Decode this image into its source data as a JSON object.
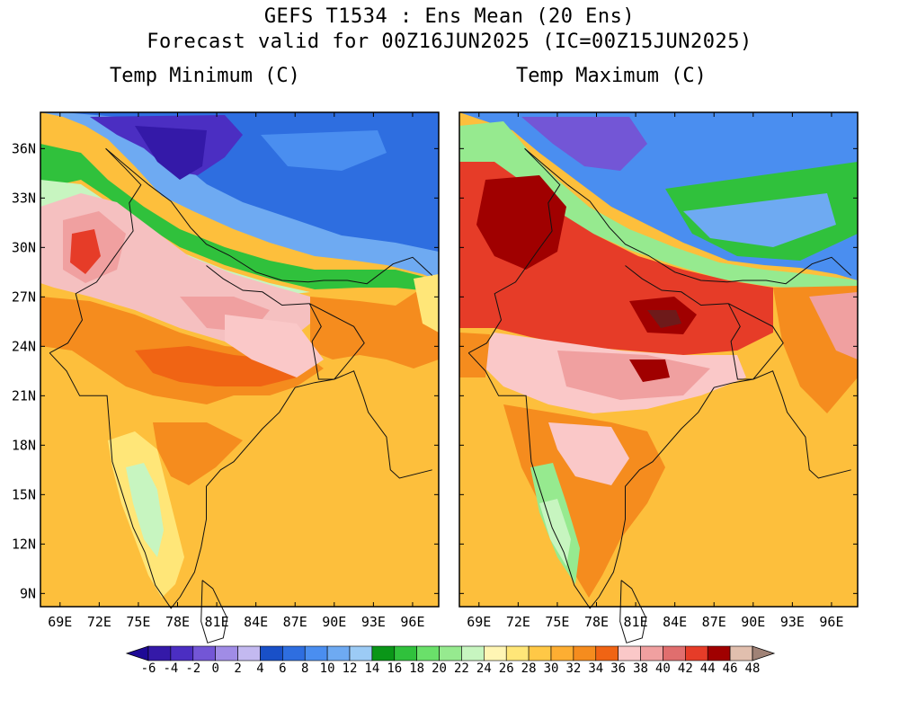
{
  "header": {
    "line1": "GEFS T1534 : Ens Mean (20 Ens)",
    "line2": "Forecast valid for 00Z16JUN2025 (IC=00Z15JUN2025)"
  },
  "panels": [
    {
      "title": "Temp Minimum (C)"
    },
    {
      "title": "Temp Maximum (C)"
    }
  ],
  "axes": {
    "lat_labels": [
      "36N",
      "33N",
      "30N",
      "27N",
      "24N",
      "21N",
      "18N",
      "15N",
      "12N",
      "9N"
    ],
    "lon_labels": [
      "69E",
      "72E",
      "75E",
      "78E",
      "81E",
      "84E",
      "87E",
      "90E",
      "93E",
      "96E"
    ]
  },
  "colorbar": {
    "labels": [
      "-6",
      "-4",
      "-2",
      "0",
      "2",
      "4",
      "6",
      "8",
      "10",
      "12",
      "14",
      "16",
      "18",
      "20",
      "22",
      "24",
      "26",
      "28",
      "30",
      "32",
      "34",
      "36",
      "38",
      "40",
      "42",
      "44",
      "46",
      "48"
    ],
    "colors": [
      "#1e0a96",
      "#3419a8",
      "#4b2ec2",
      "#7356d6",
      "#a08ce6",
      "#c3b9f0",
      "#1950c8",
      "#2e6ee0",
      "#4a8ef0",
      "#6eaaf2",
      "#9ccbf5",
      "#0a9618",
      "#30c13c",
      "#6ae06a",
      "#96ea8f",
      "#c7f5c0",
      "#fff5b4",
      "#ffe678",
      "#ffc846",
      "#fdae32",
      "#f58c1e",
      "#f06414",
      "#fac8c8",
      "#f0a0a0",
      "#e06e6e",
      "#e63c28",
      "#a00000",
      "#e1bfae",
      "#a08276"
    ]
  }
}
